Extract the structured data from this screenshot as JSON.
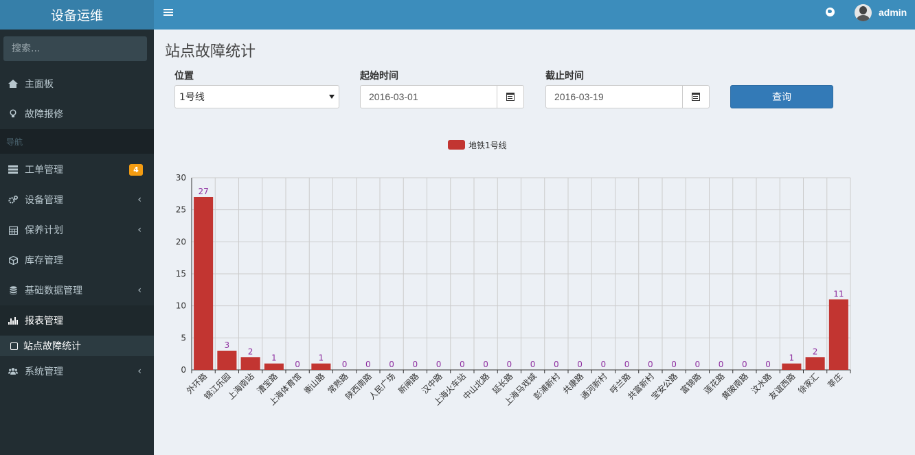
{
  "app": {
    "title": "设备运维",
    "username": "admin"
  },
  "sidebar": {
    "search_placeholder": "搜索...",
    "top_items": [
      {
        "label": "主面板",
        "icon": "home-icon"
      },
      {
        "label": "故障报修",
        "icon": "lightbulb-icon"
      }
    ],
    "header": "导航",
    "items": [
      {
        "label": "工单管理",
        "icon": "tasks-icon",
        "badge": "4"
      },
      {
        "label": "设备管理",
        "icon": "cogs-icon"
      },
      {
        "label": "保养计划",
        "icon": "calendar-icon"
      },
      {
        "label": "库存管理",
        "icon": "cube-icon"
      },
      {
        "label": "基础数据管理",
        "icon": "database-icon"
      },
      {
        "label": "报表管理",
        "icon": "bar-chart-icon"
      }
    ],
    "submenu_item": "站点故障统计",
    "last_item": {
      "label": "系统管理",
      "icon": "users-icon"
    }
  },
  "page": {
    "title": "站点故障统计"
  },
  "filters": {
    "location_label": "位置",
    "location_value": "1号线",
    "start_label": "起始时间",
    "start_value": "2016-03-01",
    "end_label": "截止时间",
    "end_value": "2016-03-19",
    "query_label": "查询"
  },
  "chart_data": {
    "type": "bar",
    "title": "",
    "xlabel": "",
    "ylabel": "",
    "ylim": [
      0,
      30
    ],
    "yticks": [
      0,
      5,
      10,
      15,
      20,
      25,
      30
    ],
    "grid": true,
    "legend_position": "top-center",
    "categories": [
      "外环路",
      "锦江乐园",
      "上海南站",
      "漕宝路",
      "上海体育馆",
      "衡山路",
      "常熟路",
      "陕西南路",
      "人民广场",
      "新闸路",
      "汉中路",
      "上海火车站",
      "中山北路",
      "延长路",
      "上海马戏城",
      "彭浦新村",
      "共康路",
      "通河新村",
      "呼兰路",
      "共富新村",
      "宝安公路",
      "富锦路",
      "莲花路",
      "黄陂南路",
      "汶水路",
      "友谊西路",
      "徐家汇",
      "莘庄"
    ],
    "series": [
      {
        "name": "地铁1号线",
        "color": "#c23531",
        "values": [
          27,
          3,
          2,
          1,
          0,
          1,
          0,
          0,
          0,
          0,
          0,
          0,
          0,
          0,
          0,
          0,
          0,
          0,
          0,
          0,
          0,
          0,
          0,
          0,
          0,
          1,
          2,
          11
        ]
      }
    ],
    "label_color": "#8e2fa0"
  }
}
